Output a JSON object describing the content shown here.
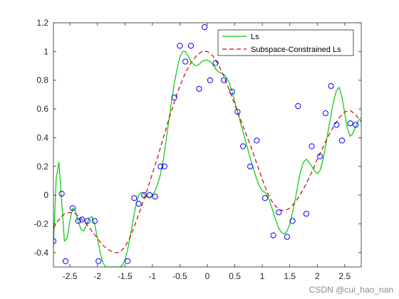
{
  "chart_data": {
    "type": "line",
    "title": "",
    "xlabel": "",
    "ylabel": "",
    "xlim": [
      -2.8,
      2.8
    ],
    "ylim": [
      -0.5,
      1.2
    ],
    "xticks": [
      -2.5,
      -2,
      -1.5,
      -1,
      -0.5,
      0,
      0.5,
      1,
      1.5,
      2,
      2.5
    ],
    "xtick_labels": [
      "-2.5",
      "-2",
      "-1.5",
      "-1",
      "-0.5",
      "0",
      "0.5",
      "1",
      "1.5",
      "2",
      "2.5"
    ],
    "yticks": [
      -0.4,
      -0.2,
      0,
      0.2,
      0.4,
      0.6,
      0.8,
      1,
      1.2
    ],
    "ytick_labels": [
      "-0.4",
      "-0.2",
      "0",
      "0.2",
      "0.4",
      "0.6",
      "0.8",
      "1",
      "1.2"
    ],
    "grid": false,
    "legend_position": "top-right",
    "samples": {
      "name": "",
      "marker": "circle",
      "color": "#0000ff",
      "x": [
        -2.8,
        -2.65,
        -2.58,
        -2.45,
        -2.35,
        -2.28,
        -2.18,
        -2.05,
        -1.98,
        -1.45,
        -1.33,
        -1.25,
        -1.15,
        -1.05,
        -0.95,
        -0.85,
        -0.78,
        -0.6,
        -0.5,
        -0.4,
        -0.3,
        -0.15,
        -0.05,
        0.05,
        0.15,
        0.3,
        0.45,
        0.55,
        0.65,
        0.78,
        0.9,
        1.05,
        1.2,
        1.3,
        1.45,
        1.55,
        1.65,
        1.8,
        1.9,
        2.05,
        2.15,
        2.25,
        2.35,
        2.45,
        2.6,
        2.7
      ],
      "y": [
        -0.32,
        0.01,
        -0.46,
        -0.09,
        -0.18,
        -0.17,
        -0.18,
        -0.18,
        -0.46,
        -0.46,
        -0.02,
        -0.06,
        0.0,
        0.0,
        -0.01,
        0.2,
        0.2,
        0.68,
        1.04,
        0.93,
        1.04,
        0.74,
        1.17,
        0.8,
        0.92,
        0.8,
        0.72,
        0.58,
        0.34,
        0.2,
        0.38,
        -0.02,
        -0.28,
        -0.12,
        -0.29,
        -0.18,
        0.62,
        -0.13,
        0.34,
        0.27,
        0.57,
        0.76,
        0.49,
        0.38,
        0.5,
        0.49
      ]
    },
    "series": [
      {
        "name": "Ls",
        "color": "#00cc00",
        "style": "solid",
        "x": [
          -2.8,
          -2.75,
          -2.7,
          -2.65,
          -2.6,
          -2.55,
          -2.5,
          -2.45,
          -2.4,
          -2.35,
          -2.3,
          -2.25,
          -2.2,
          -2.15,
          -2.1,
          -2.05,
          -2.0,
          -1.95,
          -1.9,
          -1.85,
          -1.8,
          -1.75,
          -1.7,
          -1.65,
          -1.6,
          -1.55,
          -1.5,
          -1.45,
          -1.4,
          -1.35,
          -1.3,
          -1.25,
          -1.2,
          -1.15,
          -1.1,
          -1.05,
          -1.0,
          -0.95,
          -0.9,
          -0.85,
          -0.8,
          -0.75,
          -0.7,
          -0.65,
          -0.6,
          -0.55,
          -0.5,
          -0.45,
          -0.4,
          -0.35,
          -0.3,
          -0.25,
          -0.2,
          -0.15,
          -0.1,
          -0.05,
          0.0,
          0.05,
          0.1,
          0.15,
          0.2,
          0.25,
          0.3,
          0.35,
          0.4,
          0.45,
          0.5,
          0.55,
          0.6,
          0.65,
          0.7,
          0.75,
          0.8,
          0.85,
          0.9,
          0.95,
          1.0,
          1.05,
          1.1,
          1.15,
          1.2,
          1.25,
          1.3,
          1.35,
          1.4,
          1.45,
          1.5,
          1.55,
          1.6,
          1.65,
          1.7,
          1.75,
          1.8,
          1.85,
          1.9,
          1.95,
          2.0,
          2.05,
          2.1,
          2.15,
          2.2,
          2.25,
          2.3,
          2.35,
          2.4,
          2.45,
          2.5,
          2.55,
          2.6,
          2.65,
          2.7,
          2.75,
          2.8
        ],
        "y": [
          -0.35,
          0.12,
          0.23,
          -0.05,
          -0.32,
          -0.3,
          -0.18,
          -0.09,
          -0.11,
          -0.18,
          -0.24,
          -0.25,
          -0.21,
          -0.16,
          -0.15,
          -0.2,
          -0.3,
          -0.4,
          -0.47,
          -0.5,
          -0.5,
          -0.5,
          -0.5,
          -0.5,
          -0.5,
          -0.49,
          -0.45,
          -0.38,
          -0.28,
          -0.17,
          -0.07,
          0.0,
          0.02,
          0.01,
          -0.01,
          -0.02,
          0.0,
          0.03,
          0.08,
          0.15,
          0.25,
          0.38,
          0.52,
          0.66,
          0.78,
          0.88,
          0.96,
          1.0,
          1.0,
          0.97,
          0.93,
          0.91,
          0.9,
          0.91,
          0.93,
          0.94,
          0.94,
          0.93,
          0.91,
          0.88,
          0.86,
          0.85,
          0.84,
          0.82,
          0.78,
          0.72,
          0.65,
          0.58,
          0.51,
          0.44,
          0.37,
          0.3,
          0.23,
          0.17,
          0.11,
          0.06,
          0.03,
          0.02,
          -0.01,
          -0.06,
          -0.12,
          -0.18,
          -0.23,
          -0.26,
          -0.27,
          -0.25,
          -0.2,
          -0.12,
          -0.03,
          0.08,
          0.17,
          0.23,
          0.25,
          0.23,
          0.2,
          0.17,
          0.15,
          0.17,
          0.24,
          0.34,
          0.45,
          0.56,
          0.66,
          0.73,
          0.75,
          0.68,
          0.57,
          0.46,
          0.41,
          0.43,
          0.48,
          0.52,
          0.54
        ]
      },
      {
        "name": "Subspace-Constrained Ls",
        "color": "#cc0000",
        "style": "dashed",
        "x": [
          -2.8,
          -2.7,
          -2.6,
          -2.5,
          -2.4,
          -2.3,
          -2.2,
          -2.1,
          -2.0,
          -1.9,
          -1.8,
          -1.7,
          -1.6,
          -1.5,
          -1.4,
          -1.3,
          -1.2,
          -1.1,
          -1.0,
          -0.9,
          -0.8,
          -0.7,
          -0.6,
          -0.5,
          -0.4,
          -0.3,
          -0.2,
          -0.1,
          0.0,
          0.1,
          0.2,
          0.3,
          0.4,
          0.5,
          0.6,
          0.7,
          0.8,
          0.9,
          1.0,
          1.1,
          1.2,
          1.3,
          1.4,
          1.5,
          1.6,
          1.7,
          1.8,
          1.9,
          2.0,
          2.1,
          2.2,
          2.3,
          2.4,
          2.5,
          2.6,
          2.7,
          2.8
        ],
        "y": [
          -0.23,
          -0.17,
          -0.13,
          -0.12,
          -0.13,
          -0.16,
          -0.2,
          -0.25,
          -0.3,
          -0.35,
          -0.38,
          -0.4,
          -0.4,
          -0.36,
          -0.29,
          -0.19,
          -0.08,
          0.03,
          0.15,
          0.27,
          0.4,
          0.53,
          0.65,
          0.76,
          0.85,
          0.92,
          0.97,
          1.0,
          1.0,
          0.97,
          0.91,
          0.83,
          0.73,
          0.63,
          0.53,
          0.43,
          0.33,
          0.22,
          0.11,
          0.01,
          -0.06,
          -0.1,
          -0.11,
          -0.09,
          -0.05,
          0.01,
          0.08,
          0.16,
          0.25,
          0.33,
          0.41,
          0.48,
          0.54,
          0.58,
          0.59,
          0.56,
          0.51
        ]
      }
    ]
  },
  "watermark": "CSDN @cui_hao_nan"
}
